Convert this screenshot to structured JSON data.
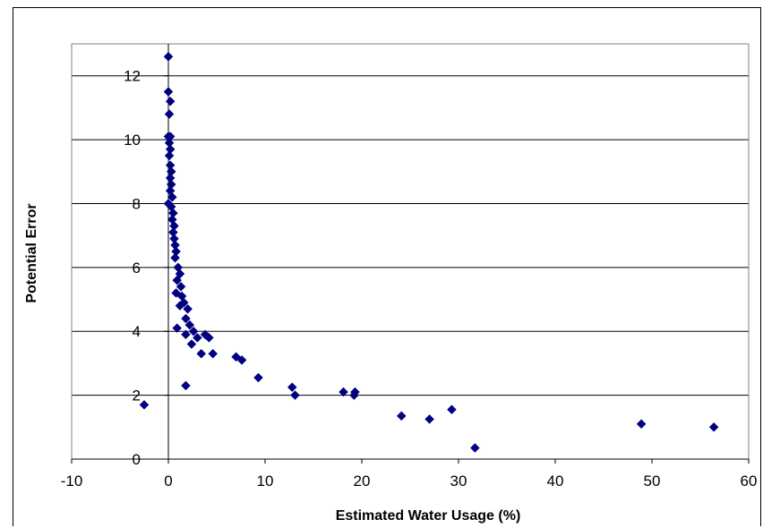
{
  "chart_data": {
    "type": "scatter",
    "title": "",
    "xlabel": "Estimated Water Usage (%)",
    "ylabel": "Potential Error",
    "xlim": [
      -10,
      60
    ],
    "ylim": [
      0,
      13
    ],
    "x_ticks": [
      "-10",
      "0",
      "10",
      "20",
      "30",
      "40",
      "50",
      "60"
    ],
    "y_ticks": [
      "0",
      "2",
      "4",
      "6",
      "8",
      "10",
      "12"
    ],
    "grid": "horizontal",
    "legend": "none",
    "marker_color": "#000080",
    "series": [
      {
        "points": [
          [
            0.0,
            12.6
          ],
          [
            0.0,
            11.5
          ],
          [
            0.2,
            11.2
          ],
          [
            0.1,
            10.8
          ],
          [
            0.0,
            10.1
          ],
          [
            0.2,
            10.1
          ],
          [
            0.1,
            9.9
          ],
          [
            0.2,
            9.7
          ],
          [
            0.1,
            9.5
          ],
          [
            0.2,
            9.2
          ],
          [
            0.3,
            9.0
          ],
          [
            0.2,
            8.8
          ],
          [
            0.3,
            8.6
          ],
          [
            0.2,
            8.4
          ],
          [
            0.4,
            8.2
          ],
          [
            0.0,
            8.0
          ],
          [
            0.3,
            7.9
          ],
          [
            0.5,
            7.7
          ],
          [
            0.4,
            7.5
          ],
          [
            0.6,
            7.3
          ],
          [
            0.5,
            7.1
          ],
          [
            0.6,
            6.9
          ],
          [
            0.7,
            6.7
          ],
          [
            0.8,
            6.5
          ],
          [
            0.7,
            6.3
          ],
          [
            1.0,
            6.0
          ],
          [
            1.2,
            5.8
          ],
          [
            0.9,
            5.6
          ],
          [
            1.3,
            5.4
          ],
          [
            0.8,
            5.2
          ],
          [
            1.4,
            5.1
          ],
          [
            1.6,
            4.9
          ],
          [
            2.0,
            4.7
          ],
          [
            1.2,
            4.8
          ],
          [
            1.8,
            4.4
          ],
          [
            2.2,
            4.2
          ],
          [
            2.6,
            4.0
          ],
          [
            1.8,
            3.9
          ],
          [
            3.0,
            3.8
          ],
          [
            2.4,
            3.6
          ],
          [
            4.2,
            3.8
          ],
          [
            3.8,
            3.9
          ],
          [
            0.9,
            4.1
          ],
          [
            3.4,
            3.3
          ],
          [
            4.6,
            3.3
          ],
          [
            7.0,
            3.2
          ],
          [
            7.6,
            3.1
          ],
          [
            9.3,
            2.55
          ],
          [
            1.8,
            2.3
          ],
          [
            12.8,
            2.25
          ],
          [
            13.1,
            2.0
          ],
          [
            18.1,
            2.1
          ],
          [
            19.3,
            2.1
          ],
          [
            19.2,
            2.0
          ],
          [
            -2.5,
            1.7
          ],
          [
            24.1,
            1.35
          ],
          [
            27.0,
            1.25
          ],
          [
            29.3,
            1.55
          ],
          [
            31.7,
            0.35
          ],
          [
            48.9,
            1.1
          ],
          [
            56.4,
            1.0
          ]
        ]
      }
    ]
  }
}
